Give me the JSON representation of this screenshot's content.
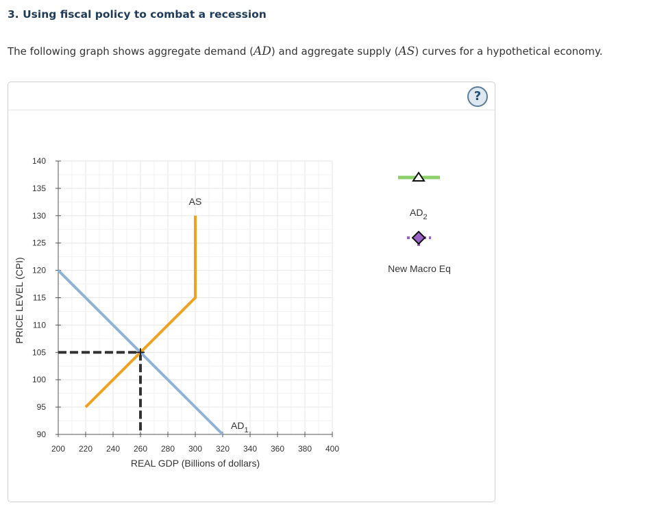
{
  "question": {
    "heading": "3. Using fiscal policy to combat a recession",
    "intro_before_ad": "The following graph shows aggregate demand (",
    "ad_symbol": "AD",
    "intro_between": ") and aggregate supply (",
    "as_symbol": "AS",
    "intro_after_as": ") curves for a hypothetical economy."
  },
  "help_button": {
    "label": "?"
  },
  "legend": {
    "items": [
      {
        "label": "AD",
        "subscript": "2",
        "color": "#8dcf6b",
        "marker": "triangle"
      },
      {
        "label": "New Macro Eq",
        "color": "#9a62c5",
        "marker": "diamond"
      }
    ]
  },
  "chart_data": {
    "type": "line",
    "xlabel": "REAL GDP (Billions of dollars)",
    "ylabel": "PRICE LEVEL (CPI)",
    "xlim": [
      200,
      400
    ],
    "ylim": [
      90,
      140
    ],
    "xticks": [
      200,
      220,
      240,
      260,
      280,
      300,
      320,
      340,
      360,
      380,
      400
    ],
    "yticks": [
      90,
      95,
      100,
      105,
      110,
      115,
      120,
      125,
      130,
      135,
      140
    ],
    "grid": true,
    "series": [
      {
        "name": "AS",
        "color": "#f0a11f",
        "points": [
          [
            220,
            95
          ],
          [
            300,
            115
          ],
          [
            300,
            130
          ]
        ]
      },
      {
        "name": "AD",
        "subscript": "1",
        "color": "#8fb3d6",
        "points": [
          [
            200,
            120
          ],
          [
            320,
            90
          ]
        ]
      }
    ],
    "equilibrium": {
      "x": 260,
      "y": 105,
      "color": "#333333"
    }
  }
}
